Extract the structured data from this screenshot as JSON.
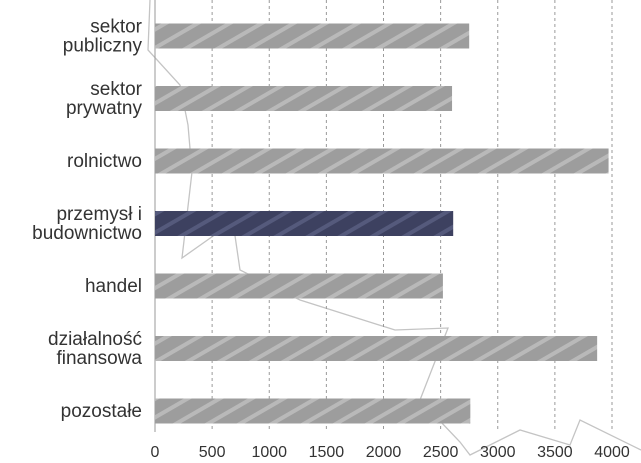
{
  "chart_data": {
    "type": "bar",
    "orientation": "horizontal",
    "categories": [
      [
        "sektor",
        "publiczny"
      ],
      [
        "sektor",
        "prywatny"
      ],
      [
        "rolnictwo"
      ],
      [
        "przemysł i",
        "budownictwo"
      ],
      [
        "handel"
      ],
      [
        "działalność",
        "finansowa"
      ],
      [
        "pozostałe"
      ]
    ],
    "values": [
      2750,
      2600,
      3970,
      2610,
      2520,
      3870,
      2760
    ],
    "highlight_index": 3,
    "xlim": [
      0,
      4000
    ],
    "xticks": [
      0,
      500,
      1000,
      1500,
      2000,
      2500,
      3000,
      3500,
      4000
    ],
    "grid": "vertical",
    "colors": {
      "bar": "#9d9d9d",
      "bar_stripe": "#b9b9b9",
      "highlight": "#3d4160",
      "highlight_stripe": "#555a7c",
      "grid": "#9a9a9a"
    },
    "title": "",
    "xlabel": "",
    "ylabel": ""
  }
}
